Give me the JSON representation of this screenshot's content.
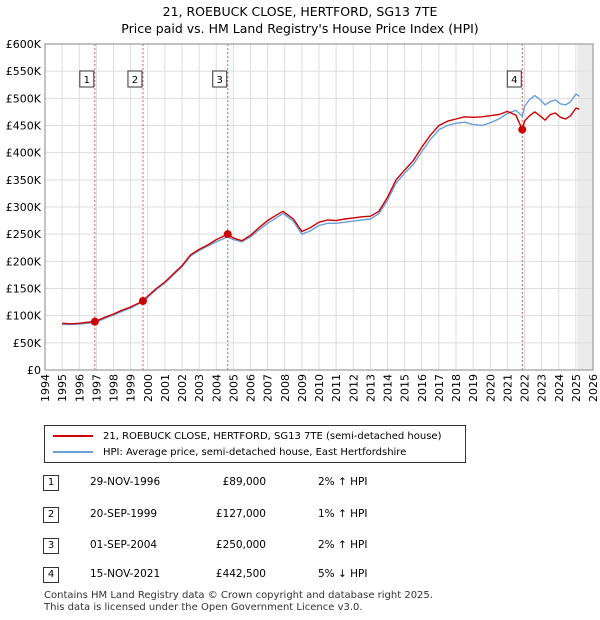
{
  "header": {
    "title": "21, ROEBUCK CLOSE, HERTFORD, SG13 7TE",
    "subtitle": "Price paid vs. HM Land Registry's House Price Index (HPI)"
  },
  "colors": {
    "price_line": "#cc0000",
    "hpi_line": "#6a9fd8",
    "grid": "#dddddd",
    "future_shade": "#ebebeb"
  },
  "chart_data": {
    "type": "line",
    "title": "21, ROEBUCK CLOSE, HERTFORD, SG13 7TE",
    "subtitle": "Price paid vs. HM Land Registry's House Price Index (HPI)",
    "xlabel": "",
    "ylabel": "",
    "xlim": [
      1994,
      2026
    ],
    "ylim": [
      0,
      600000
    ],
    "x_ticks": [
      1994,
      1995,
      1996,
      1997,
      1998,
      1999,
      2000,
      2001,
      2002,
      2003,
      2004,
      2005,
      2006,
      2007,
      2008,
      2009,
      2010,
      2011,
      2012,
      2013,
      2014,
      2015,
      2016,
      2017,
      2018,
      2019,
      2020,
      2021,
      2022,
      2023,
      2024,
      2025,
      2026
    ],
    "y_ticks": [
      0,
      50000,
      100000,
      150000,
      200000,
      250000,
      300000,
      350000,
      400000,
      450000,
      500000,
      550000,
      600000
    ],
    "y_tick_labels": [
      "£0",
      "£50K",
      "£100K",
      "£150K",
      "£200K",
      "£250K",
      "£300K",
      "£350K",
      "£400K",
      "£450K",
      "£500K",
      "£550K",
      "£600K"
    ],
    "future_shade_from": 2025.1,
    "series": [
      {
        "name": "21, ROEBUCK CLOSE, HERTFORD, SG13 7TE (semi-detached house)",
        "color": "#cc0000",
        "x": [
          1995.0,
          1995.5,
          1996.0,
          1996.5,
          1996.91,
          1997.5,
          1998.0,
          1998.5,
          1999.0,
          1999.72,
          2000.0,
          2000.5,
          2001.0,
          2001.5,
          2002.0,
          2002.5,
          2003.0,
          2003.5,
          2004.0,
          2004.67,
          2005.0,
          2005.5,
          2006.0,
          2006.5,
          2007.0,
          2007.5,
          2007.9,
          2008.5,
          2009.0,
          2009.5,
          2010.0,
          2010.5,
          2011.0,
          2011.5,
          2012.0,
          2012.5,
          2013.0,
          2013.5,
          2014.0,
          2014.5,
          2015.0,
          2015.5,
          2016.0,
          2016.5,
          2017.0,
          2017.5,
          2018.0,
          2018.5,
          2019.0,
          2019.5,
          2020.0,
          2020.5,
          2021.0,
          2021.5,
          2021.87,
          2022.0,
          2022.3,
          2022.6,
          2022.9,
          2023.2,
          2023.5,
          2023.8,
          2024.1,
          2024.4,
          2024.7,
          2025.0,
          2025.2
        ],
        "values": [
          86000,
          85000,
          86000,
          88000,
          89000,
          97000,
          103000,
          110000,
          116000,
          127000,
          136000,
          150000,
          162000,
          177000,
          192000,
          212000,
          222000,
          230000,
          240000,
          250000,
          243000,
          238000,
          248000,
          262000,
          275000,
          285000,
          292000,
          278000,
          255000,
          262000,
          272000,
          276000,
          275000,
          278000,
          280000,
          282000,
          283000,
          292000,
          318000,
          350000,
          368000,
          385000,
          410000,
          432000,
          450000,
          458000,
          462000,
          466000,
          465000,
          466000,
          468000,
          470000,
          476000,
          469000,
          442500,
          458000,
          468000,
          475000,
          468000,
          460000,
          470000,
          473000,
          465000,
          462000,
          468000,
          482000,
          480000
        ]
      },
      {
        "name": "HPI: Average price, semi-detached house, East Hertfordshire",
        "color": "#6a9fd8",
        "x": [
          1995.0,
          1995.5,
          1996.0,
          1996.5,
          1996.91,
          1997.5,
          1998.0,
          1998.5,
          1999.0,
          1999.72,
          2000.0,
          2000.5,
          2001.0,
          2001.5,
          2002.0,
          2002.5,
          2003.0,
          2003.5,
          2004.0,
          2004.67,
          2005.0,
          2005.5,
          2006.0,
          2006.5,
          2007.0,
          2007.5,
          2007.9,
          2008.5,
          2009.0,
          2009.5,
          2010.0,
          2010.5,
          2011.0,
          2011.5,
          2012.0,
          2012.5,
          2013.0,
          2013.5,
          2014.0,
          2014.5,
          2015.0,
          2015.5,
          2016.0,
          2016.5,
          2017.0,
          2017.5,
          2018.0,
          2018.5,
          2019.0,
          2019.5,
          2020.0,
          2020.5,
          2021.0,
          2021.5,
          2021.87,
          2022.0,
          2022.3,
          2022.6,
          2022.9,
          2023.2,
          2023.5,
          2023.8,
          2024.1,
          2024.4,
          2024.7,
          2025.0,
          2025.2
        ],
        "values": [
          84000,
          83500,
          84500,
          86000,
          87000,
          95000,
          101000,
          108000,
          114000,
          126000,
          134000,
          148000,
          160000,
          175000,
          190000,
          210000,
          220000,
          228000,
          236000,
          245000,
          240000,
          236000,
          245000,
          258000,
          270000,
          280000,
          288000,
          274000,
          250000,
          256000,
          266000,
          270000,
          270000,
          272000,
          274000,
          276000,
          278000,
          288000,
          312000,
          344000,
          362000,
          378000,
          402000,
          424000,
          442000,
          450000,
          454000,
          456000,
          452000,
          450000,
          455000,
          462000,
          472000,
          478000,
          467000,
          485000,
          498000,
          505000,
          498000,
          488000,
          494000,
          497000,
          490000,
          488000,
          494000,
          508000,
          504000
        ]
      }
    ],
    "sales": [
      {
        "label": "1",
        "x": 1996.91,
        "value": 89000
      },
      {
        "label": "2",
        "x": 1999.72,
        "value": 127000
      },
      {
        "label": "3",
        "x": 2004.67,
        "value": 250000
      },
      {
        "label": "4",
        "x": 2021.87,
        "value": 442500
      }
    ]
  },
  "legend": {
    "price_label": "21, ROEBUCK CLOSE, HERTFORD, SG13 7TE (semi-detached house)",
    "hpi_label": "HPI: Average price, semi-detached house, East Hertfordshire"
  },
  "transactions": [
    {
      "num": "1",
      "date": "29-NOV-1996",
      "price": "£89,000",
      "hpi": "2% ↑ HPI"
    },
    {
      "num": "2",
      "date": "20-SEP-1999",
      "price": "£127,000",
      "hpi": "1% ↑ HPI"
    },
    {
      "num": "3",
      "date": "01-SEP-2004",
      "price": "£250,000",
      "hpi": "2% ↑ HPI"
    },
    {
      "num": "4",
      "date": "15-NOV-2021",
      "price": "£442,500",
      "hpi": "5% ↓ HPI"
    }
  ],
  "footer": {
    "line1": "Contains HM Land Registry data © Crown copyright and database right 2025.",
    "line2": "This data is licensed under the Open Government Licence v3.0."
  }
}
